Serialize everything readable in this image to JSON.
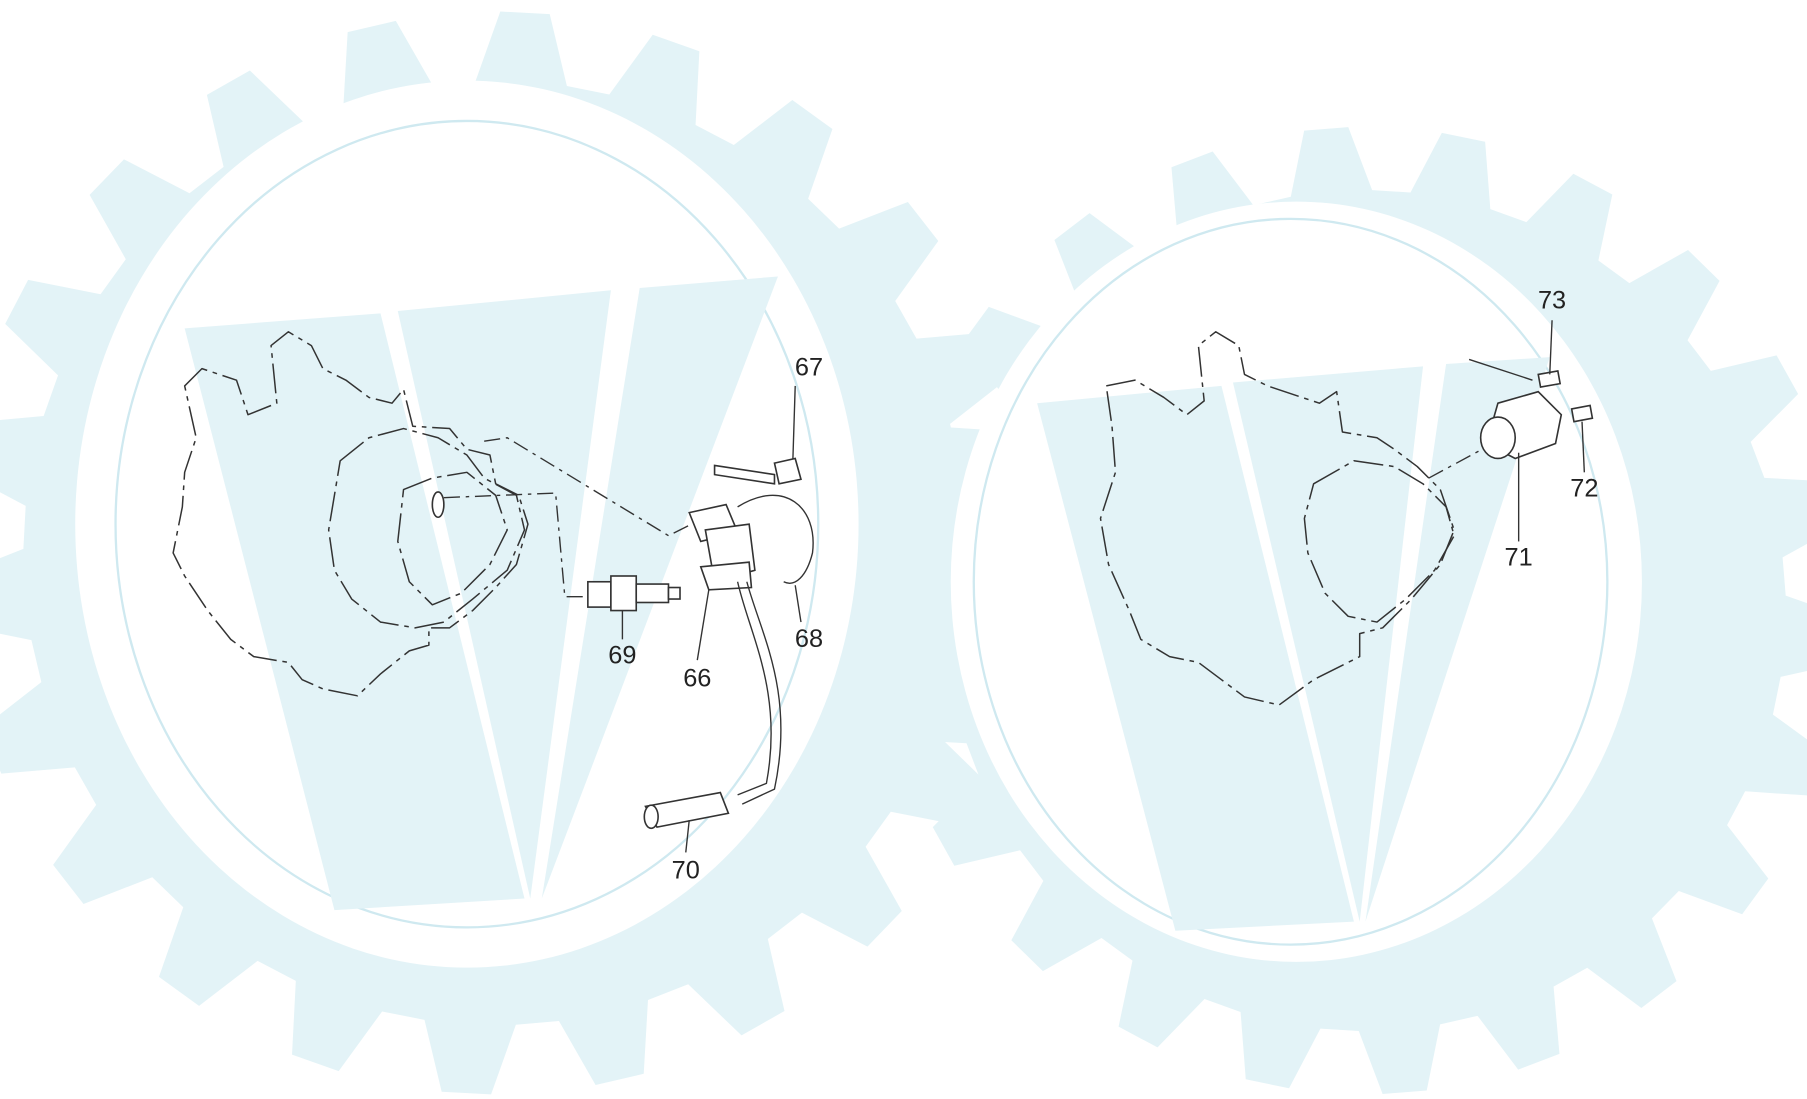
{
  "callouts": [
    {
      "label": "66"
    },
    {
      "label": "67"
    },
    {
      "label": "68"
    },
    {
      "label": "69"
    },
    {
      "label": "70"
    },
    {
      "label": "71"
    },
    {
      "label": "72"
    },
    {
      "label": "73"
    }
  ]
}
